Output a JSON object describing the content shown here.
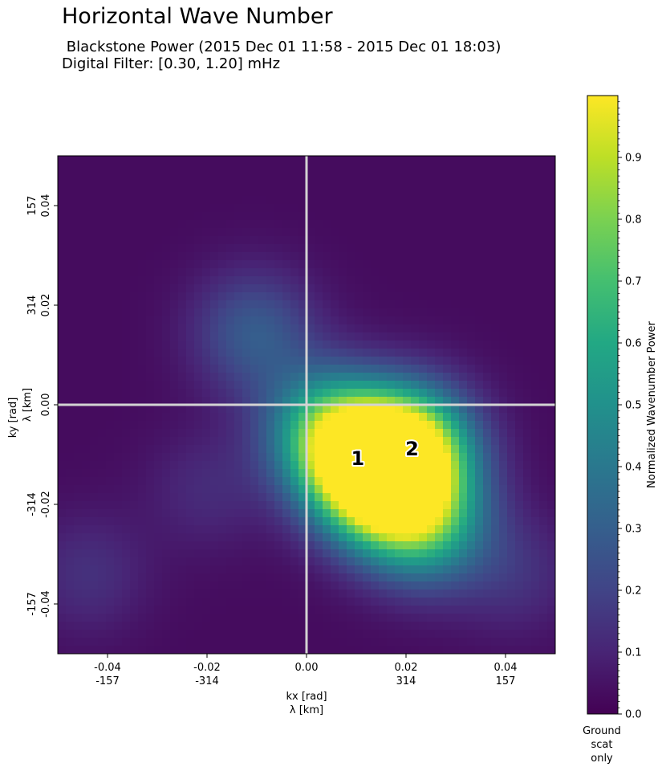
{
  "chart_data": {
    "type": "heatmap",
    "title": "Horizontal Wave Number",
    "subtitle_line1": " Blackstone Power (2015 Dec 01 11:58 - 2015 Dec 01 18:03)",
    "subtitle_line2": "Digital Filter: [0.30, 1.20] mHz",
    "xlabel_line1": "kx [rad]",
    "xlabel_line2": "λ [km]",
    "ylabel_line1": "ky [rad]",
    "ylabel_line2": "λ [km]",
    "xlim": [
      -0.05,
      0.05
    ],
    "ylim": [
      -0.05,
      0.05
    ],
    "x_ticks": [
      {
        "value": -0.04,
        "label": "-0.04",
        "label2": "-157"
      },
      {
        "value": -0.02,
        "label": "-0.02",
        "label2": "-314"
      },
      {
        "value": 0.0,
        "label": "0.00",
        "label2": ""
      },
      {
        "value": 0.02,
        "label": "0.02",
        "label2": "314"
      },
      {
        "value": 0.04,
        "label": "0.04",
        "label2": "157"
      }
    ],
    "y_ticks": [
      {
        "value": 0.04,
        "label": "0.04",
        "label2": "157"
      },
      {
        "value": 0.02,
        "label": "0.02",
        "label2": "314"
      },
      {
        "value": 0.0,
        "label": "0.00",
        "label2": ""
      },
      {
        "value": -0.02,
        "label": "-0.02",
        "label2": "-314"
      },
      {
        "value": -0.04,
        "label": "-0.04",
        "label2": "-157"
      }
    ],
    "zero_lines": true,
    "colormap": "viridis",
    "colorbar": {
      "label": "Normalized Wavenumber Power",
      "range": [
        0,
        1
      ],
      "ticks": [
        "0.0",
        "0.1",
        "0.2",
        "0.3",
        "0.4",
        "0.5",
        "0.6",
        "0.7",
        "0.8",
        "0.9"
      ],
      "footer_lines": [
        "Ground",
        "scat",
        "only"
      ]
    },
    "annotations": [
      {
        "text": "1",
        "x": 0.0103,
        "y": -0.0108
      },
      {
        "text": "2",
        "x": 0.0212,
        "y": -0.0089
      }
    ],
    "intensity_features": [
      {
        "kx": 0.0103,
        "ky": -0.0108,
        "power": 1.0
      },
      {
        "kx": 0.0212,
        "ky": -0.0089,
        "power": 0.95
      },
      {
        "kx": 0.0245,
        "ky": -0.024,
        "power": 0.55
      },
      {
        "kx": 0.003,
        "ky": -0.004,
        "power": 0.45
      },
      {
        "kx": 0.016,
        "ky": -0.018,
        "power": 0.7
      },
      {
        "kx": -0.0105,
        "ky": 0.0145,
        "power": 0.28
      },
      {
        "kx": -0.044,
        "ky": -0.034,
        "power": 0.12
      },
      {
        "kx": 0.042,
        "ky": -0.034,
        "power": 0.12
      },
      {
        "kx": -0.02,
        "ky": -0.017,
        "power": 0.1
      }
    ]
  }
}
